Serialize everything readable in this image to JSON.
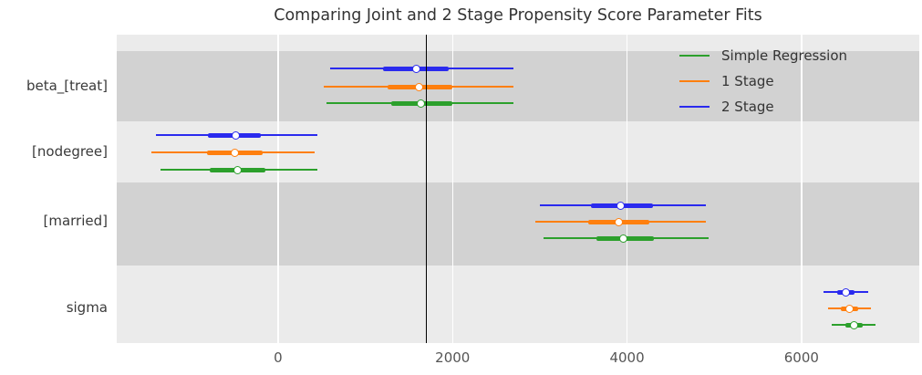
{
  "chart_data": {
    "type": "forest",
    "title": "Comparing Joint and 2 Stage Propensity Score Parameter Fits",
    "variables": [
      "beta_[treat]",
      "[nodegree]",
      "[married]",
      "sigma"
    ],
    "xticks": [
      0,
      2000,
      4000,
      6000
    ],
    "xtick_labels": [
      "0",
      "2000",
      "4000",
      "6000"
    ],
    "xlim": [
      -1850,
      7350
    ],
    "reference_line_x": 1700,
    "reference_line_color": "#000000",
    "grid": "vertical-white-gridlines",
    "legend_position": "upper-right-inside",
    "band_colors": {
      "dark": "#d2d2d2",
      "light": "#ebebeb"
    },
    "series": [
      {
        "name": "Simple Regression",
        "color": "#2ca02c",
        "row": 2,
        "estimates": [
          {
            "variable": "beta_[treat]",
            "hdi": [
              550,
              2700
            ],
            "iqr": [
              1300,
              2000
            ],
            "mean": 1640
          },
          {
            "variable": "[nodegree]",
            "hdi": [
              -1350,
              450
            ],
            "iqr": [
              -780,
              -150
            ],
            "mean": -470
          },
          {
            "variable": "[married]",
            "hdi": [
              3040,
              4930
            ],
            "iqr": [
              3650,
              4310
            ],
            "mean": 3960
          },
          {
            "variable": "sigma",
            "hdi": [
              6350,
              6850
            ],
            "iqr": [
              6500,
              6700
            ],
            "mean": 6600
          }
        ]
      },
      {
        "name": "1 Stage",
        "color": "#ff7f0e",
        "row": 1,
        "estimates": [
          {
            "variable": "beta_[treat]",
            "hdi": [
              520,
              2700
            ],
            "iqr": [
              1250,
              2000
            ],
            "mean": 1620
          },
          {
            "variable": "[nodegree]",
            "hdi": [
              -1450,
              420
            ],
            "iqr": [
              -820,
              -180
            ],
            "mean": -500
          },
          {
            "variable": "[married]",
            "hdi": [
              2950,
              4900
            ],
            "iqr": [
              3560,
              4260
            ],
            "mean": 3910
          },
          {
            "variable": "sigma",
            "hdi": [
              6300,
              6800
            ],
            "iqr": [
              6450,
              6650
            ],
            "mean": 6550
          }
        ]
      },
      {
        "name": "2 Stage",
        "color": "#2a2aee",
        "row": 0,
        "estimates": [
          {
            "variable": "beta_[treat]",
            "hdi": [
              600,
              2700
            ],
            "iqr": [
              1200,
              1960
            ],
            "mean": 1580
          },
          {
            "variable": "[nodegree]",
            "hdi": [
              -1400,
              450
            ],
            "iqr": [
              -800,
              -200
            ],
            "mean": -490
          },
          {
            "variable": "[married]",
            "hdi": [
              3000,
              4900
            ],
            "iqr": [
              3590,
              4300
            ],
            "mean": 3930
          },
          {
            "variable": "sigma",
            "hdi": [
              6250,
              6760
            ],
            "iqr": [
              6410,
              6610
            ],
            "mean": 6510
          }
        ]
      }
    ]
  }
}
